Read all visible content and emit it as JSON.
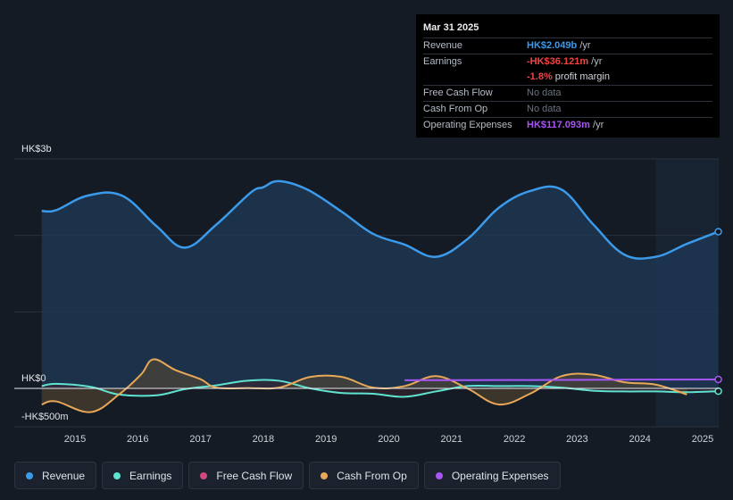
{
  "tooltip": {
    "date": "Mar 31 2025",
    "rows": [
      {
        "label": "Revenue",
        "value": "HK$2.049b",
        "unit": " /yr"
      },
      {
        "label": "Earnings",
        "value": "-HK$36.121m",
        "unit": " /yr"
      },
      {
        "label": "",
        "value": "-1.8%",
        "unit": " profit margin"
      },
      {
        "label": "Free Cash Flow",
        "value": "No data",
        "unit": ""
      },
      {
        "label": "Cash From Op",
        "value": "No data",
        "unit": ""
      },
      {
        "label": "Operating Expenses",
        "value": "HK$117.093m",
        "unit": " /yr"
      }
    ]
  },
  "legend": [
    {
      "label": "Revenue",
      "color": "#3b9ae9"
    },
    {
      "label": "Earnings",
      "color": "#5fe3d0"
    },
    {
      "label": "Free Cash Flow",
      "color": "#d0497e"
    },
    {
      "label": "Cash From Op",
      "color": "#e8a857"
    },
    {
      "label": "Operating Expenses",
      "color": "#a855f7"
    }
  ],
  "colors": {
    "revenue": "#3b9ae9",
    "earnings": "#5fe3d0",
    "fcf": "#d0497e",
    "cfo": "#e8a857",
    "opex": "#a855f7"
  },
  "chart_data": {
    "type": "line",
    "title": "",
    "xlabel": "",
    "ylabel": "",
    "ylim": [
      -500,
      3000
    ],
    "y_tick_labels": [
      "HK$3b",
      "HK$0",
      "-HK$500m"
    ],
    "y_tick_values": [
      3000,
      0,
      -500
    ],
    "x_tick_labels": [
      "2015",
      "2016",
      "2017",
      "2018",
      "2019",
      "2020",
      "2021",
      "2022",
      "2023",
      "2024",
      "2025"
    ],
    "x_tick_values": [
      2015,
      2016,
      2017,
      2018,
      2019,
      2020,
      2021,
      2022,
      2023,
      2024,
      2025
    ],
    "forecast_start": 2024.25,
    "series": [
      {
        "name": "Revenue",
        "x": [
          2014.47,
          2014.7,
          2015.2,
          2015.75,
          2016.3,
          2016.75,
          2017.25,
          2017.8,
          2018.0,
          2018.25,
          2018.7,
          2019.25,
          2019.75,
          2020.25,
          2020.75,
          2021.25,
          2021.75,
          2022.25,
          2022.75,
          2023.25,
          2023.75,
          2024.25,
          2024.75,
          2025.25
        ],
        "y": [
          2320,
          2330,
          2520,
          2520,
          2120,
          1840,
          2140,
          2560,
          2630,
          2710,
          2600,
          2310,
          2020,
          1880,
          1720,
          1950,
          2360,
          2580,
          2600,
          2150,
          1750,
          1720,
          1890,
          2049
        ]
      },
      {
        "name": "Earnings",
        "x": [
          2014.47,
          2014.7,
          2015.25,
          2015.7,
          2016.3,
          2016.75,
          2017.25,
          2017.75,
          2018.25,
          2018.75,
          2019.25,
          2019.75,
          2020.25,
          2020.75,
          2021.25,
          2021.75,
          2022.25,
          2022.75,
          2023.25,
          2023.75,
          2024.25,
          2024.75,
          2025.25
        ],
        "y": [
          30,
          60,
          20,
          -80,
          -90,
          -10,
          40,
          100,
          100,
          0,
          -60,
          -70,
          -110,
          -40,
          30,
          30,
          30,
          10,
          -30,
          -40,
          -40,
          -50,
          -36
        ]
      },
      {
        "name": "Cash From Op",
        "x": [
          2014.47,
          2014.7,
          2015.25,
          2015.7,
          2016.05,
          2016.25,
          2016.6,
          2017.0,
          2017.25,
          2017.75,
          2018.25,
          2018.75,
          2019.25,
          2019.75,
          2020.25,
          2020.75,
          2021.25,
          2021.75,
          2022.25,
          2022.75,
          2023.25,
          2023.75,
          2024.25,
          2024.75
        ],
        "y": [
          -210,
          -170,
          -310,
          -80,
          180,
          380,
          240,
          120,
          10,
          5,
          10,
          150,
          150,
          10,
          30,
          160,
          0,
          -210,
          -70,
          160,
          180,
          80,
          50,
          -80
        ]
      },
      {
        "name": "Operating Expenses",
        "x": [
          2020.25,
          2021.25,
          2022.25,
          2023.25,
          2024.25,
          2025.25
        ],
        "y": [
          107,
          108,
          110,
          112,
          115,
          117
        ]
      }
    ]
  }
}
